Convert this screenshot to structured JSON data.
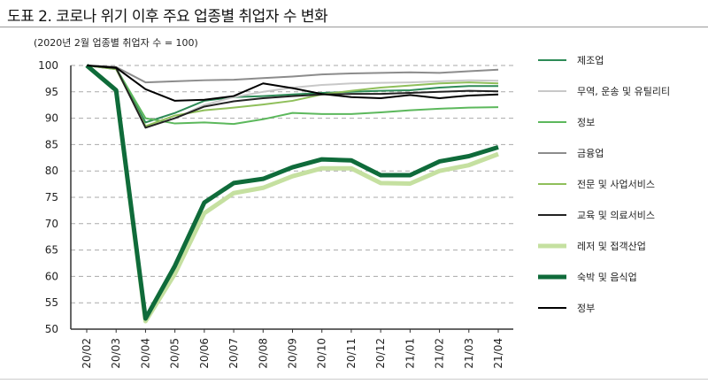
{
  "title": "도표 2. 코로나 위기 이후 주요 업종별 취업자 수 변화",
  "subtitle": "(2020년 2월 업종별 취업자 수 = 100)",
  "chart_data": {
    "type": "line",
    "title": "도표 2. 코로나 위기 이후 주요 업종별 취업자 수 변화",
    "subtitle": "(2020년 2월 업종별 취업자 수 = 100)",
    "xlabel": "",
    "ylabel": "",
    "ylim": [
      50,
      100
    ],
    "yticks": [
      50,
      55,
      60,
      65,
      70,
      75,
      80,
      85,
      90,
      95,
      100
    ],
    "grid": "horizontal dashed",
    "legend": "right",
    "categories": [
      "20/02",
      "20/03",
      "20/04",
      "20/05",
      "20/06",
      "20/07",
      "20/08",
      "20/09",
      "20/10",
      "20/11",
      "20/12",
      "21/01",
      "21/02",
      "21/03",
      "21/04"
    ],
    "series": [
      {
        "name": "제조업",
        "color": "#2e8b57",
        "width": 2,
        "values": [
          100,
          99.3,
          89.2,
          91,
          93.3,
          94,
          94.2,
          94.5,
          94.8,
          95,
          95.2,
          95.3,
          95.8,
          96.1,
          96.1
        ]
      },
      {
        "name": "무역, 운송 및 유틸리티",
        "color": "#c8c8c8",
        "width": 2,
        "values": [
          100,
          99.5,
          88.2,
          90,
          92.5,
          94,
          95,
          95.8,
          96.3,
          96.6,
          96.7,
          96.8,
          97,
          97.2,
          97.1
        ]
      },
      {
        "name": "정보",
        "color": "#5cb85c",
        "width": 2,
        "values": [
          100,
          99.5,
          90,
          89,
          89.2,
          88.9,
          89.8,
          91,
          90.8,
          90.8,
          91.1,
          91.5,
          91.8,
          92,
          92.1
        ]
      },
      {
        "name": "금융업",
        "color": "#8c8c8c",
        "width": 2,
        "values": [
          100,
          99.7,
          96.8,
          97,
          97.2,
          97.3,
          97.6,
          97.9,
          98.3,
          98.5,
          98.6,
          98.7,
          98.6,
          98.9,
          99.2
        ]
      },
      {
        "name": "전문 및 사업서비스",
        "color": "#8fbf5a",
        "width": 2,
        "values": [
          100,
          99.3,
          88.5,
          90.5,
          91.5,
          92,
          92.6,
          93.3,
          94.5,
          95.2,
          95.8,
          96.2,
          96.6,
          96.8,
          96.6
        ]
      },
      {
        "name": "교육 및 의료서비스",
        "color": "#222222",
        "width": 2,
        "values": [
          100,
          99.5,
          88.2,
          90,
          92.2,
          93.2,
          93.8,
          94.2,
          94.5,
          94.6,
          94.6,
          94.8,
          95,
          95.2,
          95.1
        ]
      },
      {
        "name": "레저 및 접객산업",
        "color": "#c5e0a0",
        "width": 5,
        "values": [
          100,
          95.3,
          51.5,
          60.5,
          72,
          75.8,
          76.8,
          79,
          80.5,
          80.5,
          77.7,
          77.6,
          80,
          81.1,
          83.2
        ]
      },
      {
        "name": "숙박 및 음식업",
        "color": "#0f6b3a",
        "width": 5,
        "values": [
          100,
          95.3,
          52,
          62,
          74,
          77.7,
          78.5,
          80.7,
          82.2,
          82,
          79.2,
          79.2,
          81.8,
          82.8,
          84.5
        ]
      },
      {
        "name": "정부",
        "color": "#000000",
        "width": 2,
        "values": [
          100,
          99.6,
          95.5,
          93.3,
          93.5,
          94.2,
          96.6,
          95.7,
          94.6,
          94,
          93.8,
          94.4,
          93.8,
          94.3,
          94.5
        ]
      }
    ]
  }
}
